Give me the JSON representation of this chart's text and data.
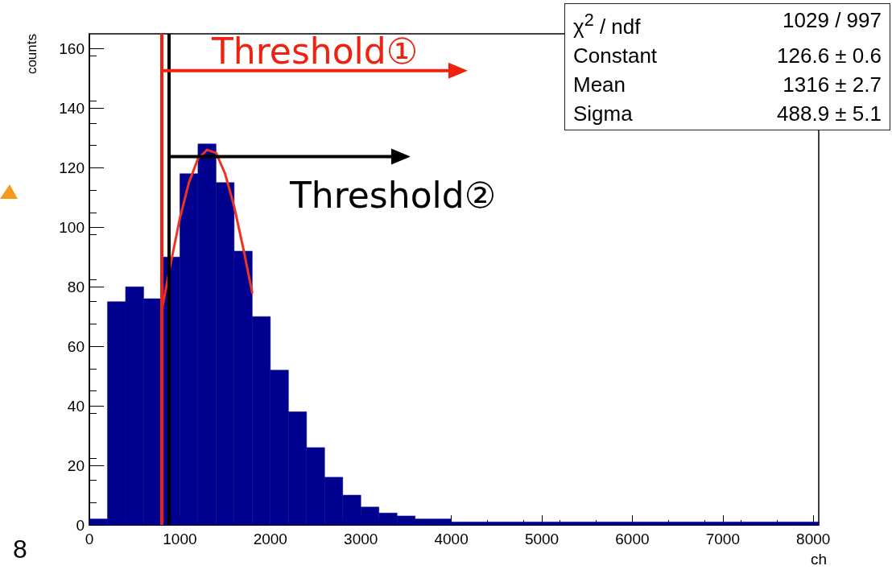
{
  "chart_data": {
    "type": "histogram",
    "xlabel": "ch",
    "ylabel": "counts",
    "bins": [
      0,
      200,
      400,
      600,
      800,
      1000,
      1200,
      1400,
      1600,
      1800,
      2000,
      2200,
      2400,
      2600,
      2800,
      3000,
      3200,
      3400,
      3600,
      3800,
      4000,
      4200,
      4400,
      4600,
      4800,
      5000,
      5200,
      5400,
      5600,
      5800,
      6000,
      6200,
      6400,
      6600,
      6800,
      7000,
      7200,
      7400,
      7600,
      7800,
      8000,
      8060
    ],
    "values": [
      2,
      75,
      80,
      76,
      90,
      118,
      128,
      115,
      92,
      70,
      52,
      38,
      26,
      16,
      10,
      6,
      4,
      3,
      2,
      2,
      1,
      1,
      1,
      1,
      1,
      1,
      1,
      1,
      1,
      1,
      1,
      1,
      1,
      1,
      1,
      1,
      1,
      1,
      1,
      1,
      1
    ],
    "color": "#00008f",
    "series": [
      {
        "type": "line",
        "color": "#ee3322",
        "x": [
          800,
          900,
          1000,
          1100,
          1200,
          1300,
          1400,
          1500,
          1600,
          1700,
          1800
        ],
        "values": [
          72,
          88,
          103,
          115,
          123,
          126,
          125,
          118,
          107,
          93,
          78
        ]
      }
    ],
    "xlim": [
      0,
      8060
    ],
    "xticks": [
      0,
      1000,
      2000,
      3000,
      4000,
      5000,
      6000,
      7000,
      8000
    ],
    "ylim": [
      0,
      165
    ],
    "yticks": [
      0,
      20,
      40,
      60,
      80,
      100,
      120,
      140,
      160
    ],
    "ref_lines": [
      {
        "axis": "x",
        "value": 800,
        "label": "Threshold①",
        "color": "#ee2211"
      },
      {
        "axis": "x",
        "value": 880,
        "label": "Threshold②",
        "color": "#000000"
      }
    ],
    "annotations": [
      "χ$^{2}$ / ndf",
      "1029 / 997",
      "Constant",
      "126.6 ± 0.6",
      "Mean",
      "1316 ± 2.7",
      "Sigma",
      "488.9 ± 5.1",
      "8"
    ]
  }
}
